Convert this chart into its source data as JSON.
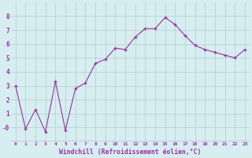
{
  "x": [
    0,
    1,
    2,
    3,
    4,
    5,
    6,
    7,
    8,
    9,
    10,
    11,
    12,
    13,
    14,
    15,
    16,
    17,
    18,
    19,
    20,
    21,
    22,
    23
  ],
  "y": [
    3.0,
    -0.1,
    1.3,
    -0.3,
    3.3,
    -0.2,
    2.8,
    3.2,
    4.6,
    4.9,
    5.7,
    5.6,
    6.5,
    7.1,
    7.1,
    7.9,
    7.4,
    6.6,
    5.9,
    5.6,
    5.4,
    5.2,
    5.0,
    5.6
  ],
  "line_color": "#9b30a0",
  "marker": "+",
  "marker_size": 3,
  "bg_color": "#d6eef0",
  "grid_color": "#b0cdd0",
  "xlabel": "Windchill (Refroidissement éolien,°C)",
  "ylim": [
    -1,
    9
  ],
  "xlim": [
    -0.5,
    23.5
  ],
  "yticks": [
    0,
    1,
    2,
    3,
    4,
    5,
    6,
    7,
    8
  ],
  "ytick_labels": [
    "-0",
    "1",
    "2",
    "3",
    "4",
    "5",
    "6",
    "7",
    "8"
  ],
  "xticks": [
    0,
    1,
    2,
    3,
    4,
    5,
    6,
    7,
    8,
    9,
    10,
    11,
    12,
    13,
    14,
    15,
    16,
    17,
    18,
    19,
    20,
    21,
    22,
    23
  ],
  "tick_label_color": "#9b30a0",
  "xlabel_text_color": "#9b30a0"
}
